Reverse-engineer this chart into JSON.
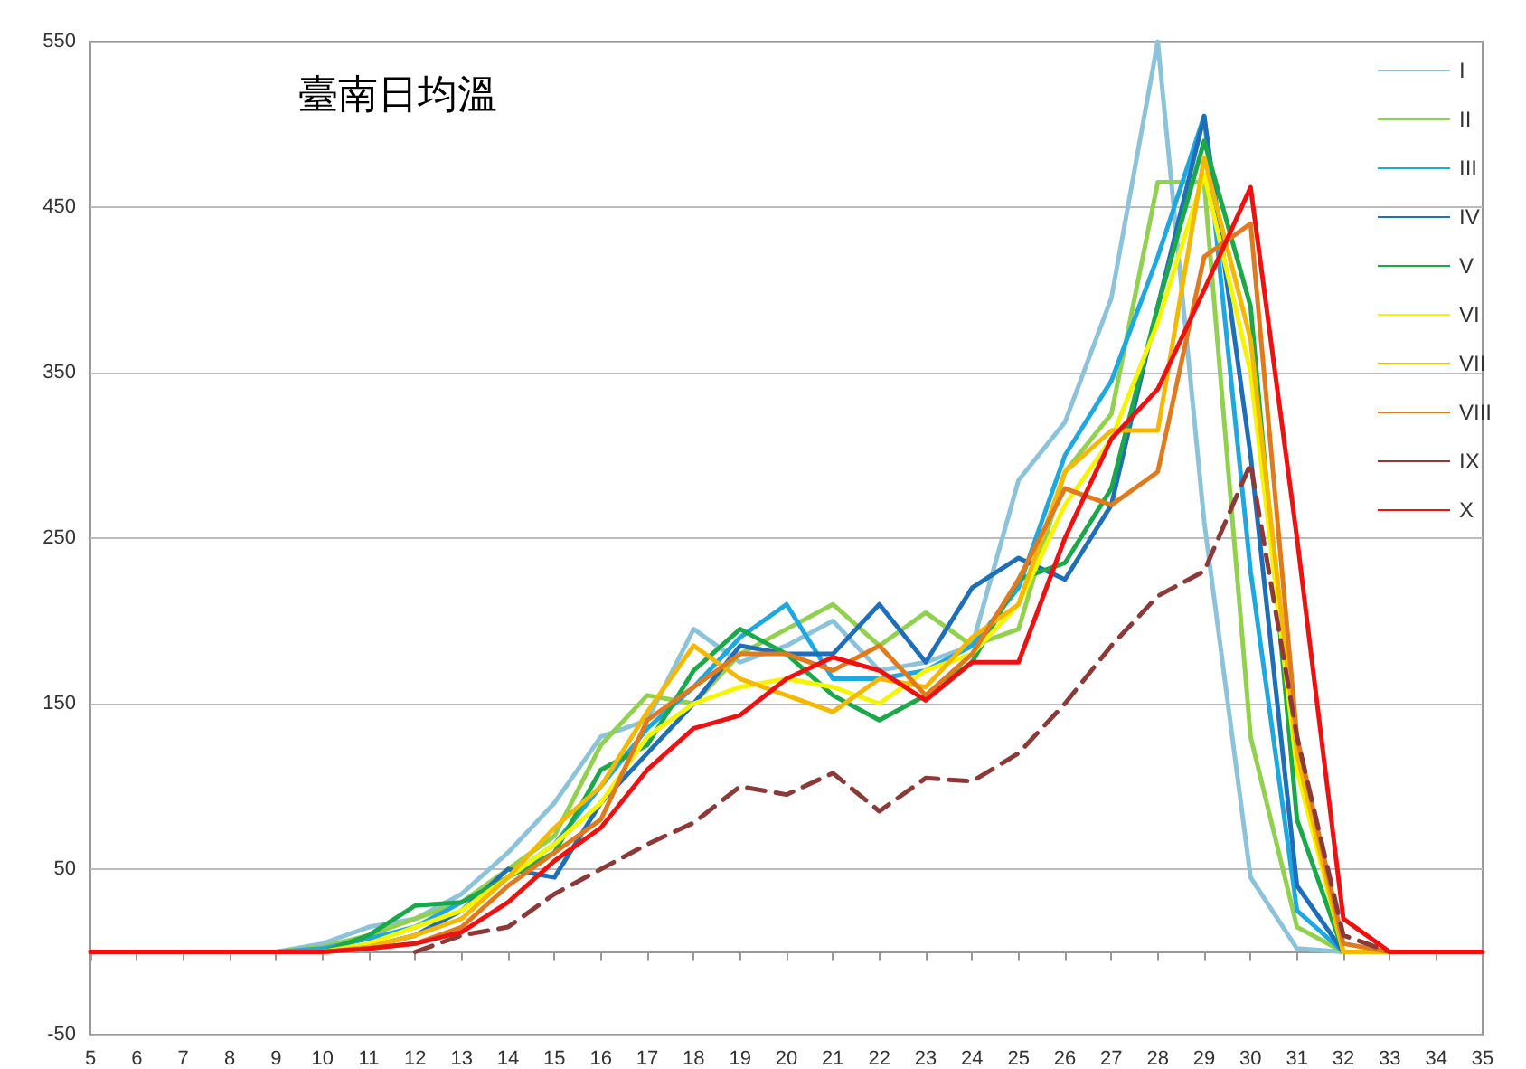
{
  "chart_data": {
    "type": "line",
    "title": "臺南日均溫",
    "categories": [
      "5",
      "6",
      "7",
      "8",
      "9",
      "10",
      "11",
      "12",
      "13",
      "14",
      "15",
      "16",
      "17",
      "18",
      "19",
      "20",
      "21",
      "22",
      "23",
      "24",
      "25",
      "26",
      "27",
      "28",
      "29",
      "30",
      "31",
      "32",
      "33",
      "34",
      "35"
    ],
    "series": [
      {
        "name": "I",
        "color": "#8dc3d9",
        "values": [
          null,
          null,
          null,
          0,
          0,
          5,
          15,
          20,
          35,
          60,
          90,
          130,
          140,
          195,
          175,
          185,
          200,
          170,
          175,
          185,
          285,
          320,
          395,
          550,
          260,
          45,
          2,
          0,
          0,
          null,
          null
        ]
      },
      {
        "name": "II",
        "color": "#92d050",
        "values": [
          null,
          null,
          null,
          0,
          0,
          3,
          10,
          20,
          30,
          50,
          70,
          125,
          155,
          150,
          180,
          195,
          210,
          185,
          205,
          185,
          195,
          290,
          325,
          465,
          465,
          130,
          15,
          0,
          0,
          null,
          null
        ]
      },
      {
        "name": "III",
        "color": "#1fa7e0",
        "values": [
          null,
          null,
          null,
          0,
          0,
          2,
          8,
          15,
          30,
          45,
          65,
          100,
          135,
          160,
          190,
          210,
          165,
          165,
          170,
          185,
          220,
          300,
          345,
          420,
          505,
          230,
          25,
          0,
          0,
          null,
          null
        ]
      },
      {
        "name": "IV",
        "color": "#1f6fb8",
        "values": [
          null,
          null,
          null,
          0,
          0,
          0,
          3,
          10,
          25,
          50,
          45,
          90,
          120,
          150,
          185,
          180,
          180,
          210,
          175,
          220,
          238,
          225,
          270,
          390,
          505,
          300,
          40,
          0,
          0,
          null,
          null
        ]
      },
      {
        "name": "V",
        "color": "#1aa84a",
        "values": [
          null,
          null,
          null,
          0,
          0,
          0,
          10,
          28,
          30,
          45,
          60,
          110,
          125,
          170,
          195,
          180,
          155,
          140,
          155,
          175,
          225,
          235,
          280,
          390,
          490,
          390,
          80,
          0,
          0,
          null,
          null
        ]
      },
      {
        "name": "VI",
        "color": "#f5f500",
        "values": [
          null,
          null,
          null,
          0,
          0,
          0,
          5,
          15,
          25,
          45,
          65,
          90,
          130,
          150,
          160,
          165,
          160,
          150,
          170,
          180,
          210,
          270,
          310,
          380,
          470,
          350,
          110,
          0,
          0,
          null,
          null
        ]
      },
      {
        "name": "VII",
        "color": "#f5b800",
        "values": [
          null,
          null,
          null,
          0,
          0,
          0,
          3,
          10,
          20,
          45,
          75,
          100,
          145,
          185,
          165,
          155,
          145,
          165,
          160,
          190,
          210,
          290,
          315,
          315,
          480,
          370,
          120,
          0,
          0,
          null,
          null
        ]
      },
      {
        "name": "VIII",
        "color": "#e07a1f",
        "values": [
          null,
          null,
          null,
          0,
          0,
          0,
          2,
          5,
          15,
          40,
          60,
          80,
          140,
          160,
          180,
          180,
          170,
          185,
          155,
          180,
          225,
          280,
          270,
          290,
          420,
          440,
          130,
          5,
          0,
          null,
          null
        ]
      },
      {
        "name": "IX",
        "color": "#8b3a3a",
        "line_style": "dashed",
        "values": [
          null,
          null,
          null,
          null,
          null,
          null,
          null,
          0,
          10,
          15,
          35,
          50,
          65,
          78,
          100,
          95,
          108,
          85,
          105,
          103,
          120,
          150,
          185,
          215,
          230,
          295,
          130,
          10,
          0,
          null,
          null
        ]
      },
      {
        "name": "X",
        "color": "#ee1111",
        "values": [
          0,
          0,
          0,
          0,
          0,
          0,
          2,
          5,
          12,
          30,
          55,
          75,
          110,
          135,
          143,
          165,
          178,
          170,
          152,
          175,
          175,
          250,
          310,
          340,
          400,
          462,
          250,
          20,
          0,
          0,
          0
        ]
      }
    ],
    "ylim": [
      -50,
      550
    ],
    "yticks": [
      -50,
      50,
      150,
      250,
      350,
      450,
      550
    ],
    "grid": "y",
    "legend": "top right",
    "marker": "none",
    "line_style": "solid"
  }
}
